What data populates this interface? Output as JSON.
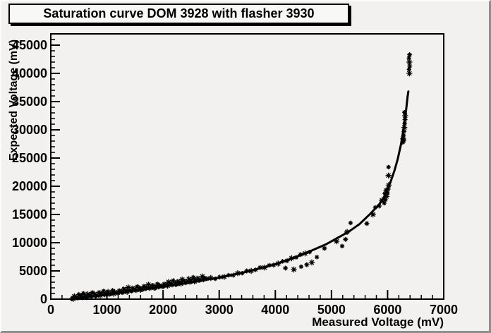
{
  "title_pave": {
    "text": "Saturation curve DOM 3928 with flasher 3930"
  },
  "colors": {
    "canvas_bg": "#f2f1ef",
    "pave_bg": "#f8f8f6",
    "axis": "#000000",
    "marker": "#000000",
    "curve": "#000000",
    "bevel_light": "#fbfbfa",
    "bevel_dark": "#8f8f8d"
  },
  "chart_data": {
    "type": "scatter",
    "title": "Saturation curve DOM 3928 with flasher 3930",
    "xlabel": "Measured Voltage (mV)",
    "ylabel": "Expected Voltage (mV)",
    "xlim": [
      0,
      7000
    ],
    "ylim": [
      0,
      45000
    ],
    "axis_draw_max_y": 47000,
    "x_major_step": 1000,
    "x_minor_step": 200,
    "y_major_step": 5000,
    "y_minor_step": 1000,
    "x_tick_labels": [
      "0",
      "1000",
      "2000",
      "3000",
      "4000",
      "5000",
      "6000",
      "7000"
    ],
    "y_tick_labels": [
      "0",
      "5000",
      "10000",
      "15000",
      "20000",
      "25000",
      "30000",
      "35000",
      "40000",
      "45000"
    ],
    "grid": false,
    "legend": "none",
    "marker_style": "asterisk",
    "series": [
      {
        "name": "measured vs expected points",
        "type": "scatter",
        "points": [
          [
            380,
            100
          ],
          [
            420,
            500
          ],
          [
            460,
            300
          ],
          [
            500,
            825
          ],
          [
            540,
            525
          ],
          [
            580,
            1040
          ],
          [
            620,
            450
          ],
          [
            660,
            900
          ],
          [
            700,
            670
          ],
          [
            740,
            1160
          ],
          [
            780,
            905
          ],
          [
            820,
            665
          ],
          [
            860,
            1185
          ],
          [
            900,
            975
          ],
          [
            940,
            1445
          ],
          [
            980,
            935
          ],
          [
            1020,
            1285
          ],
          [
            1060,
            915
          ],
          [
            1100,
            1525
          ],
          [
            1140,
            1235
          ],
          [
            1180,
            1085
          ],
          [
            1220,
            1500
          ],
          [
            1260,
            1320
          ],
          [
            1300,
            1840
          ],
          [
            1340,
            1560
          ],
          [
            1380,
            2080
          ],
          [
            1420,
            1500
          ],
          [
            1460,
            1960
          ],
          [
            1500,
            1740
          ],
          [
            1540,
            2240
          ],
          [
            1580,
            2000
          ],
          [
            1620,
            1770
          ],
          [
            1660,
            2300
          ],
          [
            1700,
            2100
          ],
          [
            1740,
            2580
          ],
          [
            1780,
            2080
          ],
          [
            1820,
            2440
          ],
          [
            1860,
            2080
          ],
          [
            1900,
            2700
          ],
          [
            1940,
            2420
          ],
          [
            1980,
            2280
          ],
          [
            2020,
            2700
          ],
          [
            2060,
            2520
          ],
          [
            2100,
            3040
          ],
          [
            2140,
            2760
          ],
          [
            2180,
            3280
          ],
          [
            2220,
            2700
          ],
          [
            2260,
            3170
          ],
          [
            2300,
            2960
          ],
          [
            2340,
            3470
          ],
          [
            2380,
            3240
          ],
          [
            2420,
            3020
          ],
          [
            2460,
            3560
          ],
          [
            2500,
            3370
          ],
          [
            2540,
            3860
          ],
          [
            2580,
            3370
          ],
          [
            2620,
            3740
          ],
          [
            2660,
            3390
          ],
          [
            2700,
            4020
          ],
          [
            2740,
            3750
          ],
          [
            2780,
            3620
          ],
          [
            400,
            60
          ],
          [
            480,
            150
          ],
          [
            560,
            250
          ],
          [
            640,
            350
          ],
          [
            720,
            450
          ],
          [
            800,
            550
          ],
          [
            880,
            650
          ],
          [
            960,
            750
          ],
          [
            1040,
            850
          ],
          [
            1120,
            950
          ],
          [
            1200,
            1050
          ],
          [
            1280,
            1170
          ],
          [
            1360,
            1290
          ],
          [
            1440,
            1410
          ],
          [
            1520,
            1530
          ],
          [
            1600,
            1650
          ],
          [
            1680,
            1770
          ],
          [
            1760,
            1890
          ],
          [
            1840,
            2010
          ],
          [
            1920,
            2130
          ],
          [
            2000,
            2250
          ],
          [
            2080,
            2370
          ],
          [
            2160,
            2490
          ],
          [
            2240,
            2610
          ],
          [
            2320,
            2740
          ],
          [
            2400,
            2870
          ],
          [
            2480,
            3000
          ],
          [
            2560,
            3140
          ],
          [
            2640,
            3280
          ],
          [
            2720,
            3420
          ],
          [
            2850,
            3750
          ],
          [
            2930,
            3600
          ],
          [
            3010,
            3900
          ],
          [
            3090,
            3950
          ],
          [
            3170,
            4250
          ],
          [
            3250,
            4250
          ],
          [
            3330,
            4600
          ],
          [
            3410,
            4600
          ],
          [
            3490,
            5000
          ],
          [
            3570,
            5000
          ],
          [
            3650,
            5200
          ],
          [
            3730,
            5600
          ],
          [
            3810,
            5600
          ],
          [
            3890,
            6000
          ],
          [
            3970,
            6050
          ],
          [
            4050,
            6300
          ],
          [
            4130,
            6700
          ],
          [
            4210,
            6800
          ],
          [
            4290,
            7250
          ],
          [
            4370,
            7400
          ],
          [
            4450,
            7900
          ],
          [
            4530,
            8100
          ],
          [
            4610,
            8350
          ],
          [
            4180,
            5500
          ],
          [
            4330,
            5250
          ],
          [
            4460,
            5750
          ],
          [
            4560,
            6100
          ],
          [
            4650,
            6500
          ],
          [
            4740,
            7450
          ],
          [
            4875,
            9000
          ],
          [
            5090,
            10250
          ],
          [
            5190,
            9400
          ],
          [
            5250,
            10600
          ],
          [
            5280,
            11900
          ],
          [
            5340,
            13500
          ],
          [
            5630,
            13400
          ],
          [
            5740,
            15000
          ],
          [
            5780,
            16250
          ],
          [
            5850,
            16500
          ],
          [
            5900,
            17500
          ],
          [
            5940,
            17000
          ],
          [
            5960,
            17600
          ],
          [
            5980,
            18200
          ],
          [
            6000,
            18800
          ],
          [
            6010,
            19500
          ],
          [
            6020,
            20200
          ],
          [
            5950,
            18700
          ],
          [
            5970,
            19300
          ],
          [
            6016,
            21900
          ],
          [
            6016,
            23400
          ],
          [
            6270,
            27800
          ],
          [
            6278,
            28400
          ],
          [
            6285,
            29000
          ],
          [
            6292,
            29700
          ],
          [
            6298,
            30400
          ],
          [
            6304,
            31100
          ],
          [
            6310,
            31800
          ],
          [
            6312,
            32500
          ],
          [
            6300,
            33100
          ],
          [
            6288,
            28100
          ],
          [
            6388,
            40000
          ],
          [
            6382,
            40700
          ],
          [
            6394,
            41300
          ],
          [
            6388,
            42000
          ],
          [
            6380,
            42700
          ],
          [
            6392,
            43300
          ]
        ]
      },
      {
        "name": "saturation fit curve",
        "type": "line",
        "points": [
          [
            350,
            0
          ],
          [
            700,
            420
          ],
          [
            1000,
            800
          ],
          [
            1300,
            1200
          ],
          [
            1600,
            1650
          ],
          [
            1900,
            2100
          ],
          [
            2200,
            2500
          ],
          [
            2500,
            2950
          ],
          [
            2800,
            3500
          ],
          [
            3100,
            4000
          ],
          [
            3400,
            4650
          ],
          [
            3700,
            5400
          ],
          [
            4000,
            6200
          ],
          [
            4300,
            7200
          ],
          [
            4600,
            8400
          ],
          [
            4900,
            9700
          ],
          [
            5100,
            10800
          ],
          [
            5300,
            11900
          ],
          [
            5500,
            13300
          ],
          [
            5700,
            15200
          ],
          [
            5850,
            16800
          ],
          [
            5950,
            18300
          ],
          [
            6050,
            20700
          ],
          [
            6120,
            22700
          ],
          [
            6180,
            24800
          ],
          [
            6240,
            27500
          ],
          [
            6290,
            30500
          ],
          [
            6330,
            33500
          ],
          [
            6355,
            35800
          ],
          [
            6370,
            36800
          ]
        ]
      }
    ]
  }
}
